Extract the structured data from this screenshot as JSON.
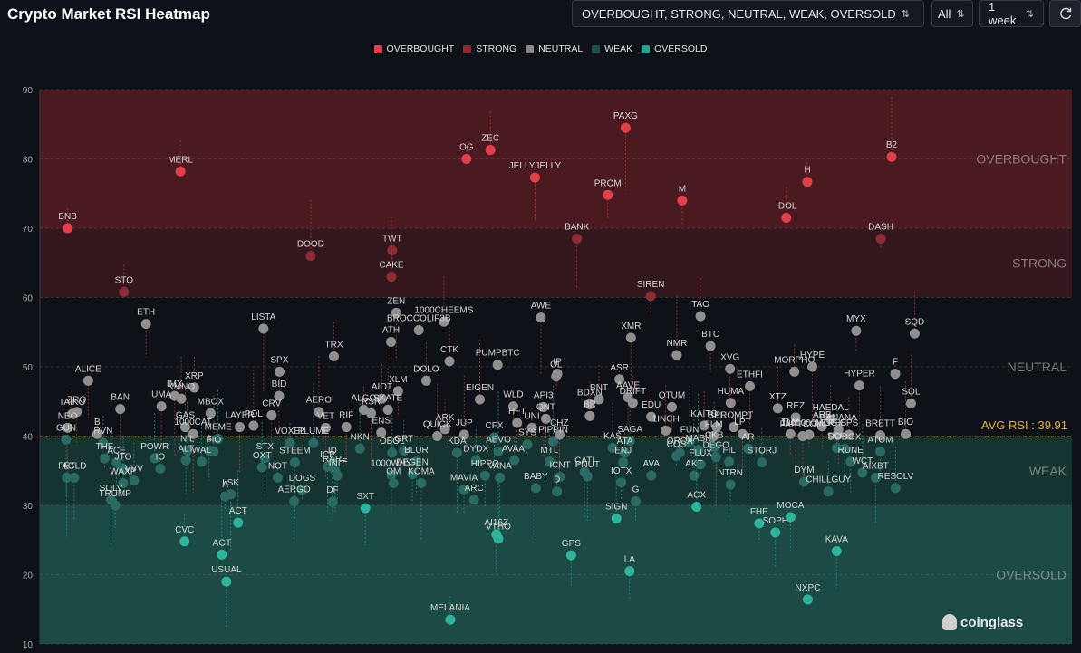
{
  "header": {
    "title": "Crypto Market RSI Heatmap",
    "filter_value": "OVERBOUGHT, STRONG, NEUTRAL, WEAK, OVERSOLD",
    "coin_select": "All",
    "period_select": "1 week",
    "refresh_icon": "refresh-icon"
  },
  "watermark": "coinglass",
  "colors": {
    "overbought": "#e0404a",
    "strong": "#8c2a30",
    "neutral": "#8a8a8a",
    "weak": "#1f4f4c",
    "oversold": "#27a08c",
    "avg_line": "#e3b34a"
  },
  "chart_data": {
    "type": "scatter",
    "title": "Crypto Market RSI Heatmap",
    "ylim": [
      10,
      90
    ],
    "yticks": [
      10,
      20,
      30,
      40,
      50,
      60,
      70,
      80,
      90
    ],
    "legend": [
      "OVERBOUGHT",
      "STRONG",
      "NEUTRAL",
      "WEAK",
      "OVERSOLD"
    ],
    "legend_position": "top-center",
    "zones": [
      {
        "name": "OVERBOUGHT",
        "from": 70,
        "to": 90
      },
      {
        "name": "STRONG",
        "from": 60,
        "to": 70
      },
      {
        "name": "NEUTRAL",
        "from": 40,
        "to": 60
      },
      {
        "name": "WEAK",
        "from": 30,
        "to": 40
      },
      {
        "name": "OVERSOLD",
        "from": 10,
        "to": 30
      }
    ],
    "avg_rsi": 39.91,
    "avg_label": "AVG RSI : 39.91",
    "points": [
      {
        "label": "BNB",
        "rsi": 70
      },
      {
        "label": "PAXG",
        "rsi": 84.5
      },
      {
        "label": "ZEC",
        "rsi": 81.3
      },
      {
        "label": "H",
        "rsi": 76.7
      },
      {
        "label": "JELLYJELLY",
        "rsi": 77.3
      },
      {
        "label": "MERL",
        "rsi": 78.2
      },
      {
        "label": "M",
        "rsi": 74
      },
      {
        "label": "OG",
        "rsi": 80
      },
      {
        "label": "B2",
        "rsi": 80.3
      },
      {
        "label": "PROM",
        "rsi": 74.8
      },
      {
        "label": "TWT",
        "rsi": 66.8
      },
      {
        "label": "DASH",
        "rsi": 68.5
      },
      {
        "label": "BANK",
        "rsi": 68.5
      },
      {
        "label": "DOOD",
        "rsi": 66
      },
      {
        "label": "IDOL",
        "rsi": 71.5
      },
      {
        "label": "CAKE",
        "rsi": 63
      },
      {
        "label": "STO",
        "rsi": 60.8
      },
      {
        "label": "SIREN",
        "rsi": 60.2
      },
      {
        "label": "ZEN",
        "rsi": 57.8
      },
      {
        "label": "TAO",
        "rsi": 57.3
      },
      {
        "label": "1000CHEEMS",
        "rsi": 56.5
      },
      {
        "label": "LISTA",
        "rsi": 55.5
      },
      {
        "label": "XMR",
        "rsi": 54.2
      },
      {
        "label": "BROCCOLIF3B",
        "rsi": 55.3
      },
      {
        "label": "SQD",
        "rsi": 54.8
      },
      {
        "label": "AWE",
        "rsi": 57.1
      },
      {
        "label": "ETH",
        "rsi": 56.2
      },
      {
        "label": "BTC",
        "rsi": 53
      },
      {
        "label": "ATH",
        "rsi": 53.6
      },
      {
        "label": "MYX",
        "rsi": 55.2
      },
      {
        "label": "NMR",
        "rsi": 51.7
      },
      {
        "label": "TRX",
        "rsi": 51.5
      },
      {
        "label": "MORPHO",
        "rsi": 49.3
      },
      {
        "label": "CTK",
        "rsi": 50.8
      },
      {
        "label": "ALICE",
        "rsi": 48
      },
      {
        "label": "XVG",
        "rsi": 49.7
      },
      {
        "label": "PUMPBTC",
        "rsi": 50.3
      },
      {
        "label": "HYPE",
        "rsi": 50
      },
      {
        "label": "IP",
        "rsi": 49
      },
      {
        "label": "SPX",
        "rsi": 49.3
      },
      {
        "label": "ETHFI",
        "rsi": 47.2
      },
      {
        "label": "XLM",
        "rsi": 46.5
      },
      {
        "label": "F",
        "rsi": 49
      },
      {
        "label": "ASR",
        "rsi": 48.2
      },
      {
        "label": "DOLO",
        "rsi": 48
      },
      {
        "label": "HYPER",
        "rsi": 47.3
      },
      {
        "label": "OL",
        "rsi": 48.6
      },
      {
        "label": "XRP",
        "rsi": 47
      },
      {
        "label": "AAVE",
        "rsi": 45.6
      },
      {
        "label": "EIGEN",
        "rsi": 45.3
      },
      {
        "label": "IMX",
        "rsi": 45.8
      },
      {
        "label": "DRIFT",
        "rsi": 44.8
      },
      {
        "label": "KMNO",
        "rsi": 45.4
      },
      {
        "label": "HUMA",
        "rsi": 44.8
      },
      {
        "label": "BDXN",
        "rsi": 44.6
      },
      {
        "label": "BID",
        "rsi": 45.8
      },
      {
        "label": "BNT",
        "rsi": 45.3
      },
      {
        "label": "AIOT",
        "rsi": 45.4
      },
      {
        "label": "SOL",
        "rsi": 44.7
      },
      {
        "label": "WLD",
        "rsi": 44.3
      },
      {
        "label": "AERO",
        "rsi": 43.5
      },
      {
        "label": "XTZ",
        "rsi": 44
      },
      {
        "label": "ALGO",
        "rsi": 43.8
      },
      {
        "label": "ZRO",
        "rsi": 43.5
      },
      {
        "label": "API3",
        "rsi": 44.2
      },
      {
        "label": "RSR",
        "rsi": 43.3
      },
      {
        "label": "REZ",
        "rsi": 42.7
      },
      {
        "label": "QNT",
        "rsi": 42.5
      },
      {
        "label": "UMA",
        "rsi": 44.3
      },
      {
        "label": "QTUM",
        "rsi": 44.2
      },
      {
        "label": "SKATE",
        "rsi": 43.8
      },
      {
        "label": "BAN",
        "rsi": 43.9
      },
      {
        "label": "EDU",
        "rsi": 42.8
      },
      {
        "label": "MBOX",
        "rsi": 43.3
      },
      {
        "label": "HAEDAL",
        "rsi": 42.4
      },
      {
        "label": "HFT",
        "rsi": 41.9
      },
      {
        "label": "TAIKO",
        "rsi": 43.2
      },
      {
        "label": "BR",
        "rsi": 42.9
      },
      {
        "label": "CRV",
        "rsi": 43
      },
      {
        "label": "ARB",
        "rsi": 41.4
      },
      {
        "label": "UNI",
        "rsi": 41.2
      },
      {
        "label": "POL",
        "rsi": 41.5
      },
      {
        "label": "KAITO",
        "rsi": 41.5
      },
      {
        "label": "VET",
        "rsi": 41.2
      },
      {
        "label": "NEO",
        "rsi": 41.2
      },
      {
        "label": "BEL",
        "rsi": 41.3
      },
      {
        "label": "LAYER",
        "rsi": 41.3
      },
      {
        "label": "PROMPT",
        "rsi": 41.3
      },
      {
        "label": "ARK",
        "rsi": 41
      },
      {
        "label": "GAS",
        "rsi": 41.3
      },
      {
        "label": "BANANA",
        "rsi": 41
      },
      {
        "label": "RIF",
        "rsi": 41.3
      },
      {
        "label": "FARTCOIN",
        "rsi": 40
      },
      {
        "label": "JUP",
        "rsi": 40.2
      },
      {
        "label": "ENS",
        "rsi": 40.5
      },
      {
        "label": "BIO",
        "rsi": 40.3
      },
      {
        "label": "CHZ",
        "rsi": 40.2
      },
      {
        "label": "BRETT",
        "rsi": 40.1
      },
      {
        "label": "LPT",
        "rsi": 40.3
      },
      {
        "label": "MEME",
        "rsi": 39.6
      },
      {
        "label": "PHB",
        "rsi": 40.2
      },
      {
        "label": "1INCH",
        "rsi": 40.8
      },
      {
        "label": "B",
        "rsi": 40.3
      },
      {
        "label": "1000000MOG",
        "rsi": 40.2
      },
      {
        "label": "CFX",
        "rsi": 39.8
      },
      {
        "label": "CPS",
        "rsi": 40.2
      },
      {
        "label": "FLM",
        "rsi": 40
      },
      {
        "label": "1000CAT",
        "rsi": 40.3
      },
      {
        "label": "TLM",
        "rsi": 40.3
      },
      {
        "label": "QUICK",
        "rsi": 40
      },
      {
        "label": "GUN",
        "rsi": 39.5
      },
      {
        "label": "SAGA",
        "rsi": 39.3
      },
      {
        "label": "PLUME",
        "rsi": 39
      },
      {
        "label": "RVN",
        "rsi": 39
      },
      {
        "label": "PIPPIN",
        "rsi": 39.2
      },
      {
        "label": "VOXEL",
        "rsi": 39
      },
      {
        "label": "FUN",
        "rsi": 39.2
      },
      {
        "label": "SYS",
        "rsi": 38.8
      },
      {
        "label": "ATOM",
        "rsi": 37.8
      },
      {
        "label": "KAS",
        "rsi": 38.3
      },
      {
        "label": "S",
        "rsi": 37.9
      },
      {
        "label": "AR",
        "rsi": 38.2
      },
      {
        "label": "GRT",
        "rsi": 37.9
      },
      {
        "label": "NIL",
        "rsi": 37.9
      },
      {
        "label": "MASK",
        "rsi": 38
      },
      {
        "label": "AEVO",
        "rsi": 37.8
      },
      {
        "label": "SCR",
        "rsi": 38.3
      },
      {
        "label": "CKB",
        "rsi": 38.4
      },
      {
        "label": "OBOL",
        "rsi": 37.6
      },
      {
        "label": "ORCA",
        "rsi": 37.6
      },
      {
        "label": "KDA",
        "rsi": 37.6
      },
      {
        "label": "FIO",
        "rsi": 37.8
      },
      {
        "label": "ATA",
        "rsi": 37.6
      },
      {
        "label": "NKN",
        "rsi": 38.2
      },
      {
        "label": "DODOX",
        "rsi": 38.2
      },
      {
        "label": "DYDX",
        "rsi": 36.5
      },
      {
        "label": "STX",
        "rsi": 36.8
      },
      {
        "label": "RUNE",
        "rsi": 36.3
      },
      {
        "label": "BLUR",
        "rsi": 36.3
      },
      {
        "label": "WAL",
        "rsi": 36.3
      },
      {
        "label": "AVAAI",
        "rsi": 36.5
      },
      {
        "label": "ALT",
        "rsi": 36.5
      },
      {
        "label": "DEGO",
        "rsi": 37
      },
      {
        "label": "ENJ",
        "rsi": 36.2
      },
      {
        "label": "THE",
        "rsi": 36.8
      },
      {
        "label": "STORJ",
        "rsi": 36.2
      },
      {
        "label": "ID",
        "rsi": 36.2
      },
      {
        "label": "ACE",
        "rsi": 36.2
      },
      {
        "label": "FLUX",
        "rsi": 35.9
      },
      {
        "label": "STEEM",
        "rsi": 36.2
      },
      {
        "label": "COS",
        "rsi": 37.1
      },
      {
        "label": "MTL",
        "rsi": 36.3
      },
      {
        "label": "POWR",
        "rsi": 36.8
      },
      {
        "label": "FIL",
        "rsi": 36.3
      },
      {
        "label": "ICP",
        "rsi": 35.6
      },
      {
        "label": "JTO",
        "rsi": 35.3
      },
      {
        "label": "CATI",
        "rsi": 34.8
      },
      {
        "label": "IO",
        "rsi": 35.3
      },
      {
        "label": "WCT",
        "rsi": 34.7
      },
      {
        "label": "HIPPO",
        "rsi": 34.3
      },
      {
        "label": "AGLD",
        "rsi": 34
      },
      {
        "label": "VANA",
        "rsi": 34
      },
      {
        "label": "RARE",
        "rsi": 35
      },
      {
        "label": "AKT",
        "rsi": 34.3
      },
      {
        "label": "DEGEN",
        "rsi": 34.5
      },
      {
        "label": "OXT",
        "rsi": 35.5
      },
      {
        "label": "AVA",
        "rsi": 34.3
      },
      {
        "label": "1000WHY",
        "rsi": 34.4
      },
      {
        "label": "FET",
        "rsi": 34
      },
      {
        "label": "PNUT",
        "rsi": 34.2
      },
      {
        "label": "NOT",
        "rsi": 34
      },
      {
        "label": "AIXBT",
        "rsi": 34
      },
      {
        "label": "INIT",
        "rsi": 34.3
      },
      {
        "label": "VVV",
        "rsi": 33.6
      },
      {
        "label": "IOTX",
        "rsi": 33.3
      },
      {
        "label": "KOMA",
        "rsi": 33.2
      },
      {
        "label": "DYM",
        "rsi": 33.4
      },
      {
        "label": "ICNT",
        "rsi": 34.1
      },
      {
        "label": "WAXP",
        "rsi": 33.2
      },
      {
        "label": "NTRN",
        "rsi": 33
      },
      {
        "label": "OM",
        "rsi": 33.2
      },
      {
        "label": "RESOLV",
        "rsi": 32.5
      },
      {
        "label": "BABY",
        "rsi": 32.5
      },
      {
        "label": "DOGS",
        "rsi": 32.2
      },
      {
        "label": "CHILLGUY",
        "rsi": 32
      },
      {
        "label": "MAVIA",
        "rsi": 32.3
      },
      {
        "label": "LSK",
        "rsi": 31.6
      },
      {
        "label": "D",
        "rsi": 32
      },
      {
        "label": "A",
        "rsi": 31.3
      },
      {
        "label": "SOLV",
        "rsi": 30.8
      },
      {
        "label": "ARC",
        "rsi": 30.8
      },
      {
        "label": "AERGO",
        "rsi": 30.6
      },
      {
        "label": "G",
        "rsi": 30.6
      },
      {
        "label": "DF",
        "rsi": 30.5
      },
      {
        "label": "TRUMP",
        "rsi": 30
      },
      {
        "label": "ACX",
        "rsi": 29.8
      },
      {
        "label": "SXT",
        "rsi": 29.6
      },
      {
        "label": "MOCA",
        "rsi": 28.3
      },
      {
        "label": "SIGN",
        "rsi": 28.1
      },
      {
        "label": "ACT",
        "rsi": 27.5
      },
      {
        "label": "FHE",
        "rsi": 27.4
      },
      {
        "label": "AI16Z",
        "rsi": 25.8
      },
      {
        "label": "SOPH",
        "rsi": 26.1
      },
      {
        "label": "VTHO",
        "rsi": 25.2
      },
      {
        "label": "CVC",
        "rsi": 24.8
      },
      {
        "label": "KAVA",
        "rsi": 23.4
      },
      {
        "label": "GPS",
        "rsi": 22.8
      },
      {
        "label": "AGT",
        "rsi": 22.9
      },
      {
        "label": "LA",
        "rsi": 20.5
      },
      {
        "label": "USUAL",
        "rsi": 19
      },
      {
        "label": "NXPC",
        "rsi": 16.4
      },
      {
        "label": "MELANIA",
        "rsi": 13.5
      }
    ]
  }
}
